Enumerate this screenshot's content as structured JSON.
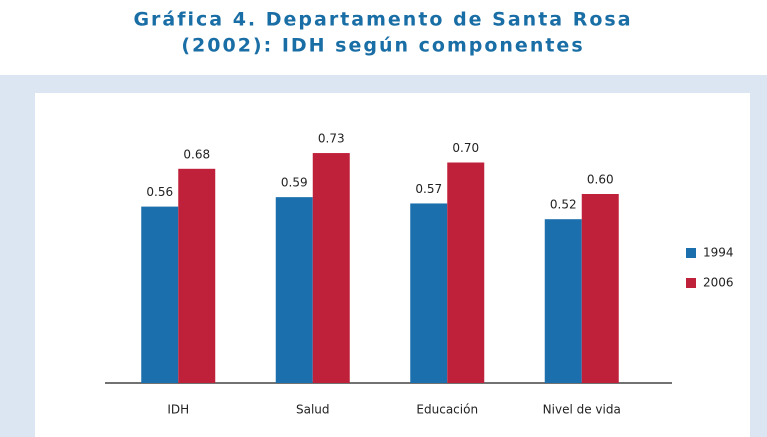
{
  "chart_data": {
    "type": "bar",
    "title": "Gráfica 4. Departamento de Santa Rosa",
    "subtitle": "(2002): IDH según componentes",
    "categories": [
      "IDH",
      "Salud",
      "Educación",
      "Nivel de vida"
    ],
    "series": [
      {
        "name": "1994",
        "color": "#1b6fad",
        "values": [
          0.56,
          0.59,
          0.57,
          0.52
        ],
        "value_labels": [
          "0.56",
          "0.59",
          "0.57",
          "0.52"
        ]
      },
      {
        "name": "2006",
        "color": "#c0213a",
        "values": [
          0.68,
          0.73,
          0.7,
          0.6
        ],
        "value_labels": [
          "0.68",
          "0.73",
          "0.70",
          "0.60"
        ]
      }
    ],
    "ylim": [
      0,
      0.8
    ],
    "legend": "right"
  }
}
